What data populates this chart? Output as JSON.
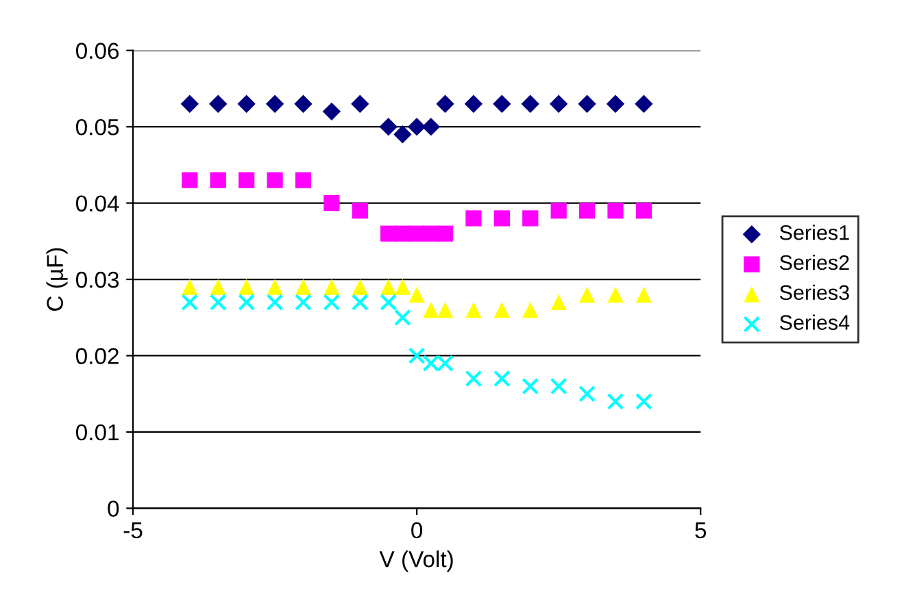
{
  "chart_data": {
    "type": "scatter",
    "xlabel": "V (Volt)",
    "ylabel": "C (µF)",
    "xlim": [
      -5,
      5
    ],
    "xticks": [
      -5,
      0,
      5
    ],
    "ylim": [
      0,
      0.06
    ],
    "yticks": [
      0,
      0.01,
      0.02,
      0.03,
      0.04,
      0.05,
      0.06
    ],
    "grid": "y",
    "legend": "right",
    "x": [
      -4,
      -3.5,
      -3,
      -2.5,
      -2,
      -1.5,
      -1,
      -0.5,
      -0.25,
      0,
      0.25,
      0.5,
      1,
      1.5,
      2,
      2.5,
      3,
      3.5,
      4
    ],
    "series": [
      {
        "name": "Series1",
        "color": "#000080",
        "marker": "diamond",
        "values": [
          0.053,
          0.053,
          0.053,
          0.053,
          0.053,
          0.052,
          0.053,
          0.05,
          0.049,
          0.05,
          0.05,
          0.053,
          0.053,
          0.053,
          0.053,
          0.053,
          0.053,
          0.053,
          0.053
        ]
      },
      {
        "name": "Series2",
        "color": "#ff00ff",
        "marker": "square",
        "values": [
          0.043,
          0.043,
          0.043,
          0.043,
          0.043,
          0.04,
          0.039,
          0.036,
          0.036,
          0.036,
          0.036,
          0.036,
          0.038,
          0.038,
          0.038,
          0.039,
          0.039,
          0.039,
          0.039
        ]
      },
      {
        "name": "Series3",
        "color": "#ffff00",
        "marker": "triangle",
        "values": [
          0.029,
          0.029,
          0.029,
          0.029,
          0.029,
          0.029,
          0.029,
          0.029,
          0.029,
          0.028,
          0.026,
          0.026,
          0.026,
          0.026,
          0.026,
          0.027,
          0.028,
          0.028,
          0.028
        ]
      },
      {
        "name": "Series4",
        "color": "#00ffff",
        "marker": "cross",
        "values": [
          0.027,
          0.027,
          0.027,
          0.027,
          0.027,
          0.027,
          0.027,
          0.027,
          0.025,
          0.02,
          0.019,
          0.019,
          0.017,
          0.017,
          0.016,
          0.016,
          0.015,
          0.014,
          0.014
        ]
      }
    ]
  }
}
